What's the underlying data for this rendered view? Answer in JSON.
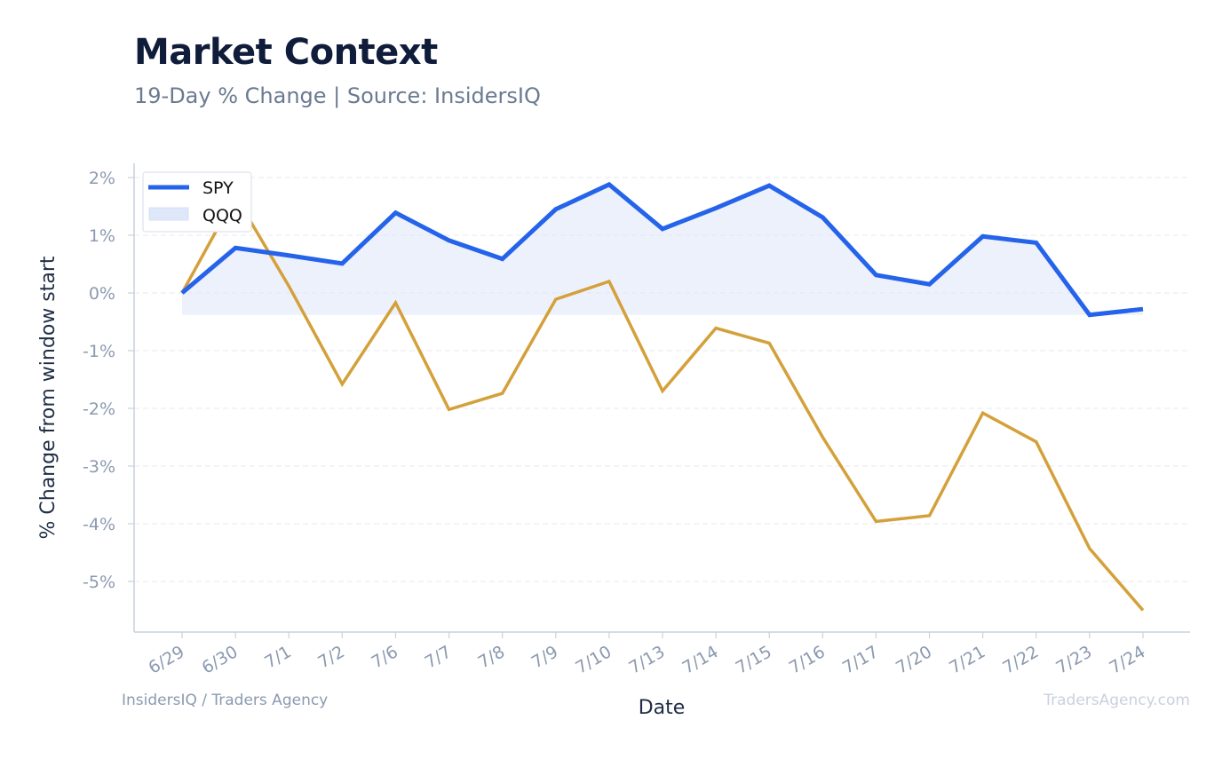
{
  "header": {
    "title": "Market Context",
    "subtitle": "19-Day % Change | Source: InsidersIQ"
  },
  "footer": {
    "left": "InsidersIQ / Traders Agency",
    "right": "TradersAgency.com"
  },
  "colors": {
    "spy": "#2563eb",
    "qqq": "#d4a03a",
    "fill": "#dfe8f9",
    "grid": "#e5e9f0",
    "axis": "#c9d1de"
  },
  "chart_data": {
    "type": "line",
    "xlabel": "Date",
    "ylabel": "% Change from window start",
    "ylim": [
      -5.9,
      2.25
    ],
    "yticks": [
      2,
      1,
      0,
      -1,
      -2,
      -3,
      -4,
      -5
    ],
    "ytick_labels": [
      "2%",
      "1%",
      "0%",
      "-1%",
      "-2%",
      "-3%",
      "-4%",
      "-5%"
    ],
    "categories": [
      "6/29",
      "6/30",
      "7/1",
      "7/2",
      "7/6",
      "7/7",
      "7/8",
      "7/9",
      "7/10",
      "7/13",
      "7/14",
      "7/15",
      "7/16",
      "7/17",
      "7/20",
      "7/21",
      "7/22",
      "7/23",
      "7/24"
    ],
    "grid": true,
    "legend_position": "top-left",
    "series": [
      {
        "name": "SPY",
        "values": [
          0.0,
          0.78,
          0.65,
          0.51,
          1.39,
          0.91,
          0.59,
          1.45,
          1.88,
          1.11,
          1.47,
          1.86,
          1.31,
          0.31,
          0.15,
          0.98,
          0.87,
          -0.38,
          -0.28
        ]
      },
      {
        "name": "QQQ",
        "values": [
          0.0,
          1.68,
          0.12,
          -1.58,
          -0.17,
          -2.02,
          -1.74,
          -0.11,
          0.2,
          -1.7,
          -0.61,
          -0.87,
          -2.5,
          -3.96,
          -3.86,
          -2.08,
          -2.58,
          -4.43,
          -5.5
        ]
      }
    ]
  }
}
